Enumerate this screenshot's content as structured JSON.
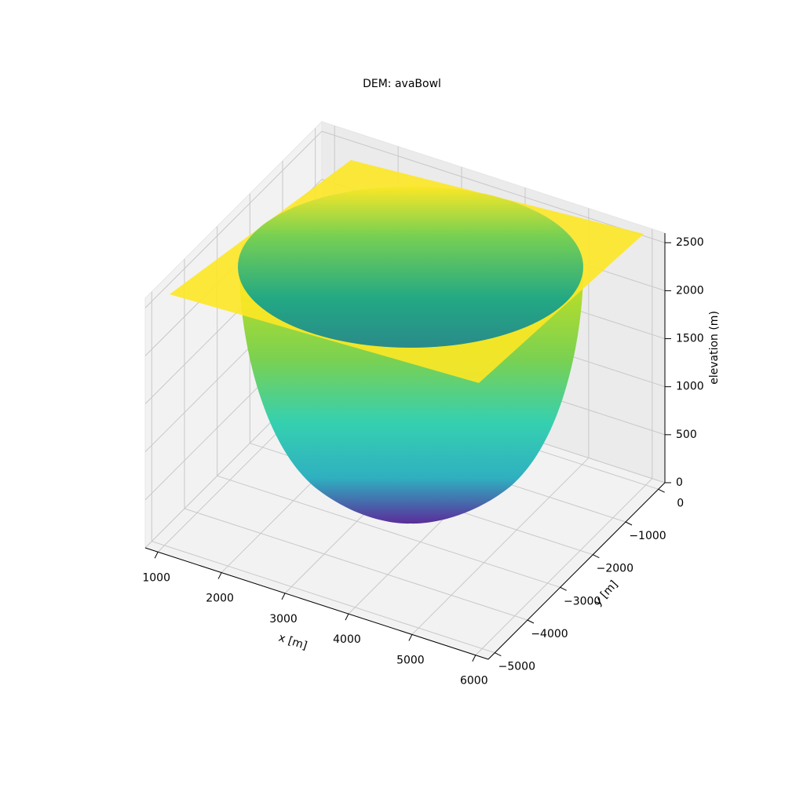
{
  "chart_data": {
    "type": "surface3d",
    "title": "DEM: avaBowl",
    "xlabel": "x [m]",
    "ylabel": "y [m]",
    "zlabel": "elevation (m)",
    "xlim": [
      800,
      6200
    ],
    "ylim": [
      -5200,
      200
    ],
    "zlim": [
      0,
      2600
    ],
    "xticks": [
      1000,
      2000,
      3000,
      4000,
      5000,
      6000
    ],
    "yticks": [
      {
        "value": -5000,
        "label": "−5000"
      },
      {
        "value": -4000,
        "label": "−4000"
      },
      {
        "value": -3000,
        "label": "−3000"
      },
      {
        "value": -2000,
        "label": "−2000"
      },
      {
        "value": -1000,
        "label": "−1000"
      },
      0
    ],
    "zticks": [
      0,
      500,
      1000,
      1500,
      2000,
      2500
    ],
    "grid": true,
    "colormap": "viridis"
  }
}
